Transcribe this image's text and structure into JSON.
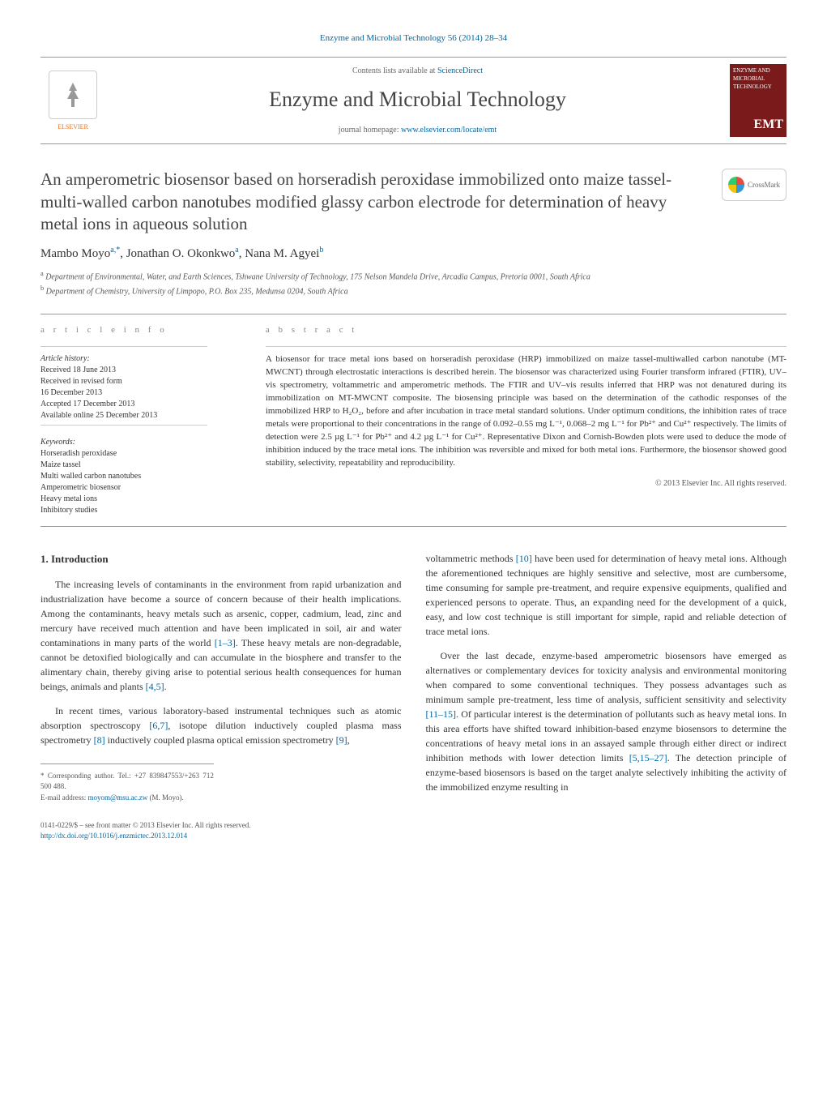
{
  "journal_ref": "Enzyme and Microbial Technology 56 (2014) 28–34",
  "header": {
    "contents_prefix": "Contents lists available at ",
    "contents_link": "ScienceDirect",
    "journal_name": "Enzyme and Microbial Technology",
    "homepage_prefix": "journal homepage: ",
    "homepage_link": "www.elsevier.com/locate/emt",
    "publisher": "ELSEVIER",
    "cover_text_top": "ENZYME AND MICROBIAL TECHNOLOGY",
    "cover_text_emt": "EMT"
  },
  "crossmark": "CrossMark",
  "title": "An amperometric biosensor based on horseradish peroxidase immobilized onto maize tassel-multi-walled carbon nanotubes modified glassy carbon electrode for determination of heavy metal ions in aqueous solution",
  "authors_html": "Mambo Moyo",
  "authors": [
    {
      "name": "Mambo Moyo",
      "sup": "a,*"
    },
    {
      "name": "Jonathan O. Okonkwo",
      "sup": "a"
    },
    {
      "name": "Nana M. Agyei",
      "sup": "b"
    }
  ],
  "affiliations": [
    {
      "sup": "a",
      "text": "Department of Environmental, Water, and Earth Sciences, Tshwane University of Technology, 175 Nelson Mandela Drive, Arcadia Campus, Pretoria 0001, South Africa"
    },
    {
      "sup": "b",
      "text": "Department of Chemistry, University of Limpopo, P.O. Box 235, Medunsa 0204, South Africa"
    }
  ],
  "info": {
    "heading": "a r t i c l e   i n f o",
    "history_label": "Article history:",
    "history": [
      "Received 18 June 2013",
      "Received in revised form",
      "16 December 2013",
      "Accepted 17 December 2013",
      "Available online 25 December 2013"
    ],
    "keywords_label": "Keywords:",
    "keywords": [
      "Horseradish peroxidase",
      "Maize tassel",
      "Multi walled carbon nanotubes",
      "Amperometric biosensor",
      "Heavy metal ions",
      "Inhibitory studies"
    ]
  },
  "abstract": {
    "heading": "a b s t r a c t",
    "text": "A biosensor for trace metal ions based on horseradish peroxidase (HRP) immobilized on maize tassel-multiwalled carbon nanotube (MT-MWCNT) through electrostatic interactions is described herein. The biosensor was characterized using Fourier transform infrared (FTIR), UV–vis spectrometry, voltammetric and amperometric methods. The FTIR and UV–vis results inferred that HRP was not denatured during its immobilization on MT-MWCNT composite. The biosensing principle was based on the determination of the cathodic responses of the immobilized HRP to H₂O₂, before and after incubation in trace metal standard solutions. Under optimum conditions, the inhibition rates of trace metals were proportional to their concentrations in the range of 0.092–0.55 mg L⁻¹, 0.068–2 mg L⁻¹ for Pb²⁺ and Cu²⁺ respectively. The limits of detection were 2.5 µg L⁻¹ for Pb²⁺ and 4.2 µg L⁻¹ for Cu²⁺. Representative Dixon and Cornish-Bowden plots were used to deduce the mode of inhibition induced by the trace metal ions. The inhibition was reversible and mixed for both metal ions. Furthermore, the biosensor showed good stability, selectivity, repeatability and reproducibility.",
    "copyright": "© 2013 Elsevier Inc. All rights reserved."
  },
  "body": {
    "section_heading": "1. Introduction",
    "col1_p1": "The increasing levels of contaminants in the environment from rapid urbanization and industrialization have become a source of concern because of their health implications. Among the contaminants, heavy metals such as arsenic, copper, cadmium, lead, zinc and mercury have received much attention and have been implicated in soil, air and water contaminations in many parts of the world [1–3]. These heavy metals are non-degradable, cannot be detoxified biologically and can accumulate in the biosphere and transfer to the alimentary chain, thereby giving arise to potential serious health consequences for human beings, animals and plants [4,5].",
    "col1_p2": "In recent times, various laboratory-based instrumental techniques such as atomic absorption spectroscopy [6,7], isotope dilution inductively coupled plasma mass spectrometry [8] inductively coupled plasma optical emission spectrometry [9],",
    "col2_p1": "voltammetric methods [10] have been used for determination of heavy metal ions. Although the aforementioned techniques are highly sensitive and selective, most are cumbersome, time consuming for sample pre-treatment, and require expensive equipments, qualified and experienced persons to operate. Thus, an expanding need for the development of a quick, easy, and low cost technique is still important for simple, rapid and reliable detection of trace metal ions.",
    "col2_p2": "Over the last decade, enzyme-based amperometric biosensors have emerged as alternatives or complementary devices for toxicity analysis and environmental monitoring when compared to some conventional techniques. They possess advantages such as minimum sample pre-treatment, less time of analysis, sufficient sensitivity and selectivity [11–15]. Of particular interest is the determination of pollutants such as heavy metal ions. In this area efforts have shifted toward inhibition-based enzyme biosensors to determine the concentrations of heavy metal ions in an assayed sample through either direct or indirect inhibition methods with lower detection limits [5,15–27]. The detection principle of enzyme-based biosensors is based on the target analyte selectively inhibiting the activity of the immobilized enzyme resulting in"
  },
  "footnotes": {
    "corresponding": "* Corresponding author. Tel.: +27 839847553/+263 712 500 488.",
    "email_label": "E-mail address: ",
    "email": "moyom@msu.ac.zw",
    "email_suffix": " (M. Moyo)."
  },
  "footer": {
    "issn": "0141-0229/$ – see front matter © 2013 Elsevier Inc. All rights reserved.",
    "doi": "http://dx.doi.org/10.1016/j.enzmictec.2013.12.014"
  },
  "refs": {
    "r1_3": "[1–3]",
    "r4_5": "[4,5]",
    "r6_7": "[6,7]",
    "r8": "[8]",
    "r9": "[9]",
    "r10": "[10]",
    "r11_15": "[11–15]",
    "r5_15_27": "[5,15–27]"
  },
  "colors": {
    "link": "#0066a1",
    "elsevier_orange": "#e9711c",
    "cover_bg": "#7a1a1a"
  }
}
